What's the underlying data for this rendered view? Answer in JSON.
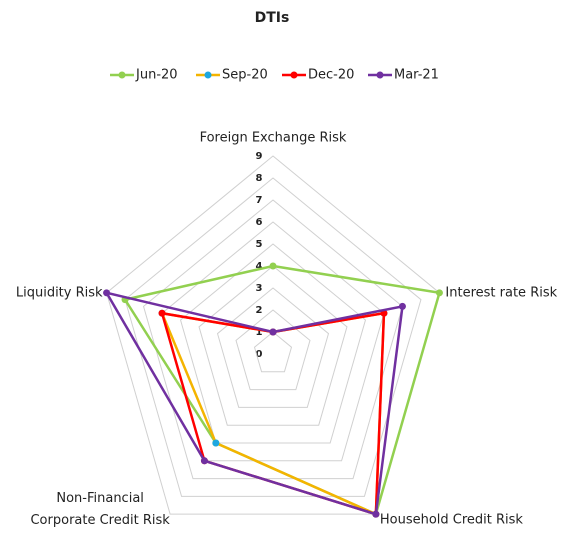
{
  "chart_data": {
    "type": "radar",
    "title": "DTIs",
    "categories": [
      "Foreign Exchange Risk",
      "Interest rate Risk",
      "Household Credit Risk",
      "Non-Financial\nCorporate Credit Risk",
      "Liquidity Risk"
    ],
    "series": [
      {
        "name": "Jun-20",
        "color": "#92d050",
        "marker_color": "#92d050",
        "values": [
          4,
          9,
          9,
          5,
          8
        ]
      },
      {
        "name": "Sep-20",
        "color": "#f4b400",
        "marker_color": "#1ea7e0",
        "values": [
          1,
          6,
          9,
          5,
          6
        ]
      },
      {
        "name": "Dec-20",
        "color": "#ff0000",
        "marker_color": "#ff0000",
        "values": [
          1,
          6,
          9,
          6,
          6
        ]
      },
      {
        "name": "Mar-21",
        "color": "#7030a0",
        "marker_color": "#7030a0",
        "values": [
          1,
          7,
          9,
          6,
          9
        ]
      }
    ],
    "ylim": [
      0,
      9
    ],
    "yticks": [
      0,
      1,
      2,
      3,
      4,
      5,
      6,
      7,
      8,
      9
    ],
    "grid": true,
    "legend": "top"
  }
}
